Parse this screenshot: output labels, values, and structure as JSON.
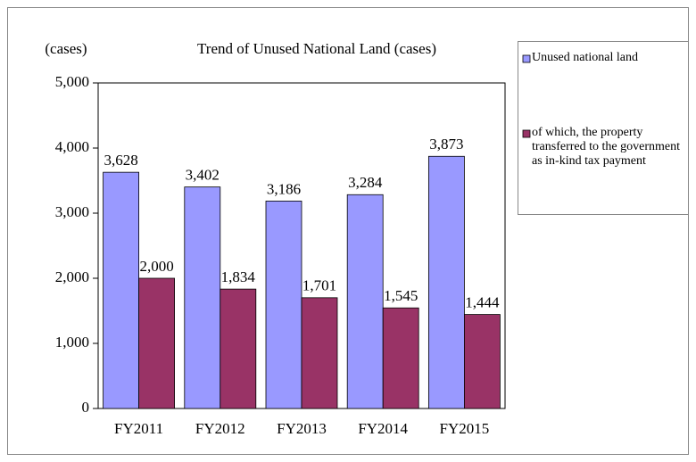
{
  "chart_data": {
    "type": "bar",
    "title": "Trend of Unused National Land (cases)",
    "y_label": "(cases)",
    "categories": [
      "FY2011",
      "FY2012",
      "FY2013",
      "FY2014",
      "FY2015"
    ],
    "series": [
      {
        "name": "Unused national land",
        "color": "#9999ff",
        "values": [
          3628,
          3402,
          3186,
          3284,
          3873
        ],
        "value_labels": [
          "3,628",
          "3,402",
          "3,186",
          "3,284",
          "3,873"
        ]
      },
      {
        "name": "of which, the property transferred to the government as in-kind tax payment",
        "color": "#993366",
        "values": [
          2000,
          1834,
          1701,
          1545,
          1444
        ],
        "value_labels": [
          "2,000",
          "1,834",
          "1,701",
          "1,545",
          "1,444"
        ]
      }
    ],
    "ylim": [
      0,
      5000
    ],
    "yticks": [
      0,
      {
        "value": 1000,
        "label": "1,000"
      },
      {
        "value": 2000,
        "label": "2,000"
      },
      {
        "value": 3000,
        "label": "3,000"
      },
      {
        "value": 4000,
        "label": "4,000"
      },
      {
        "value": 5000,
        "label": "5,000"
      }
    ],
    "grid": false,
    "legend": "right"
  }
}
